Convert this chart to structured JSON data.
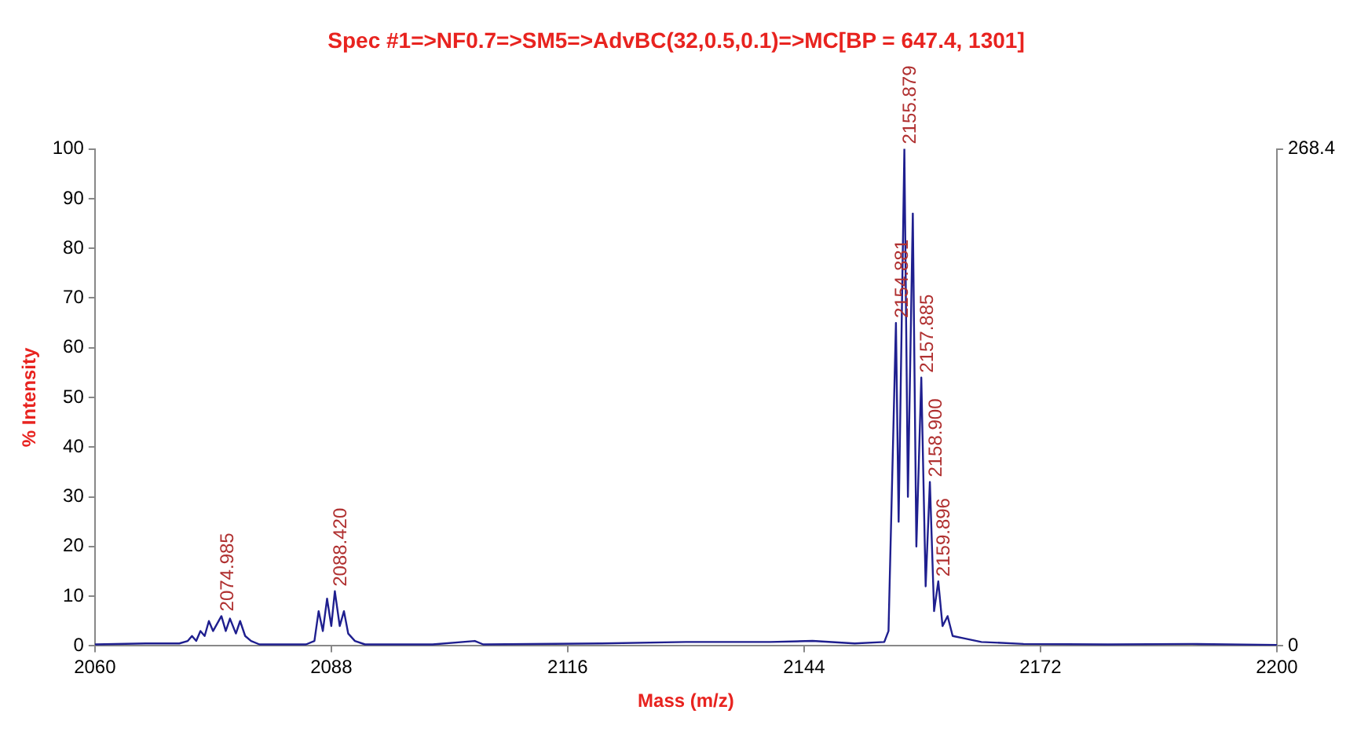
{
  "chart_data": {
    "type": "line",
    "title": "Spec #1=>NF0.7=>SM5=>AdvBC(32,0.5,0.1)=>MC[BP = 647.4, 1301]",
    "xlabel": "Mass (m/z)",
    "ylabel": "% Intensity",
    "x": [
      2060,
      2066,
      2070,
      2071,
      2071.5,
      2072,
      2072.5,
      2073,
      2073.5,
      2074,
      2074.985,
      2075.5,
      2076,
      2076.7,
      2077.2,
      2077.8,
      2078.5,
      2079.5,
      2085,
      2086,
      2086.5,
      2087,
      2087.5,
      2088,
      2088.42,
      2089,
      2089.5,
      2090,
      2090.8,
      2092,
      2100,
      2105,
      2106,
      2120,
      2130,
      2140,
      2145,
      2150,
      2153.5,
      2154,
      2154.881,
      2155.2,
      2155.879,
      2156.3,
      2156.88,
      2157.3,
      2157.885,
      2158.4,
      2158.9,
      2159.4,
      2159.896,
      2160.4,
      2161,
      2161.6,
      2163,
      2165,
      2170,
      2180,
      2190,
      2200
    ],
    "series": [
      {
        "color": "#1f1f8f",
        "values": [
          0.3,
          0.5,
          0.5,
          1,
          2,
          1,
          3,
          2,
          5,
          3,
          6,
          3,
          5.5,
          2.5,
          5,
          2,
          1,
          0.3,
          0.3,
          1,
          7,
          3,
          9.5,
          4,
          11,
          4,
          7,
          2.5,
          1,
          0.3,
          0.3,
          1,
          0.3,
          0.5,
          0.8,
          0.8,
          1,
          0.5,
          0.8,
          3,
          65,
          25,
          100,
          30,
          87,
          20,
          54,
          12,
          33,
          7,
          13,
          4,
          6,
          2,
          1.5,
          0.8,
          0.4,
          0.3,
          0.4,
          0.2
        ]
      }
    ],
    "xlim": [
      2060,
      2200
    ],
    "xticks": [
      2060,
      2088,
      2116,
      2144,
      2172,
      2200
    ],
    "ylim": [
      0,
      100
    ],
    "yticks": [
      0,
      10,
      20,
      30,
      40,
      50,
      60,
      70,
      80,
      90,
      100
    ],
    "y2lim": [
      0,
      268.4
    ],
    "y2ticks": [
      0,
      268.4
    ],
    "annotations": [
      {
        "text": "2074.985",
        "x": 2074.985,
        "y": 6
      },
      {
        "text": "2088.420",
        "x": 2088.42,
        "y": 11
      },
      {
        "text": "2155.879",
        "x": 2155.879,
        "y": 100
      },
      {
        "text": "2154.881",
        "x": 2154.881,
        "y": 65
      },
      {
        "text": "2157.885",
        "x": 2157.885,
        "y": 54
      },
      {
        "text": "2158.900",
        "x": 2158.9,
        "y": 33
      },
      {
        "text": "2159.896",
        "x": 2159.896,
        "y": 13
      }
    ],
    "grid": false,
    "legend": false,
    "marker": "none",
    "line_style": "solid"
  }
}
